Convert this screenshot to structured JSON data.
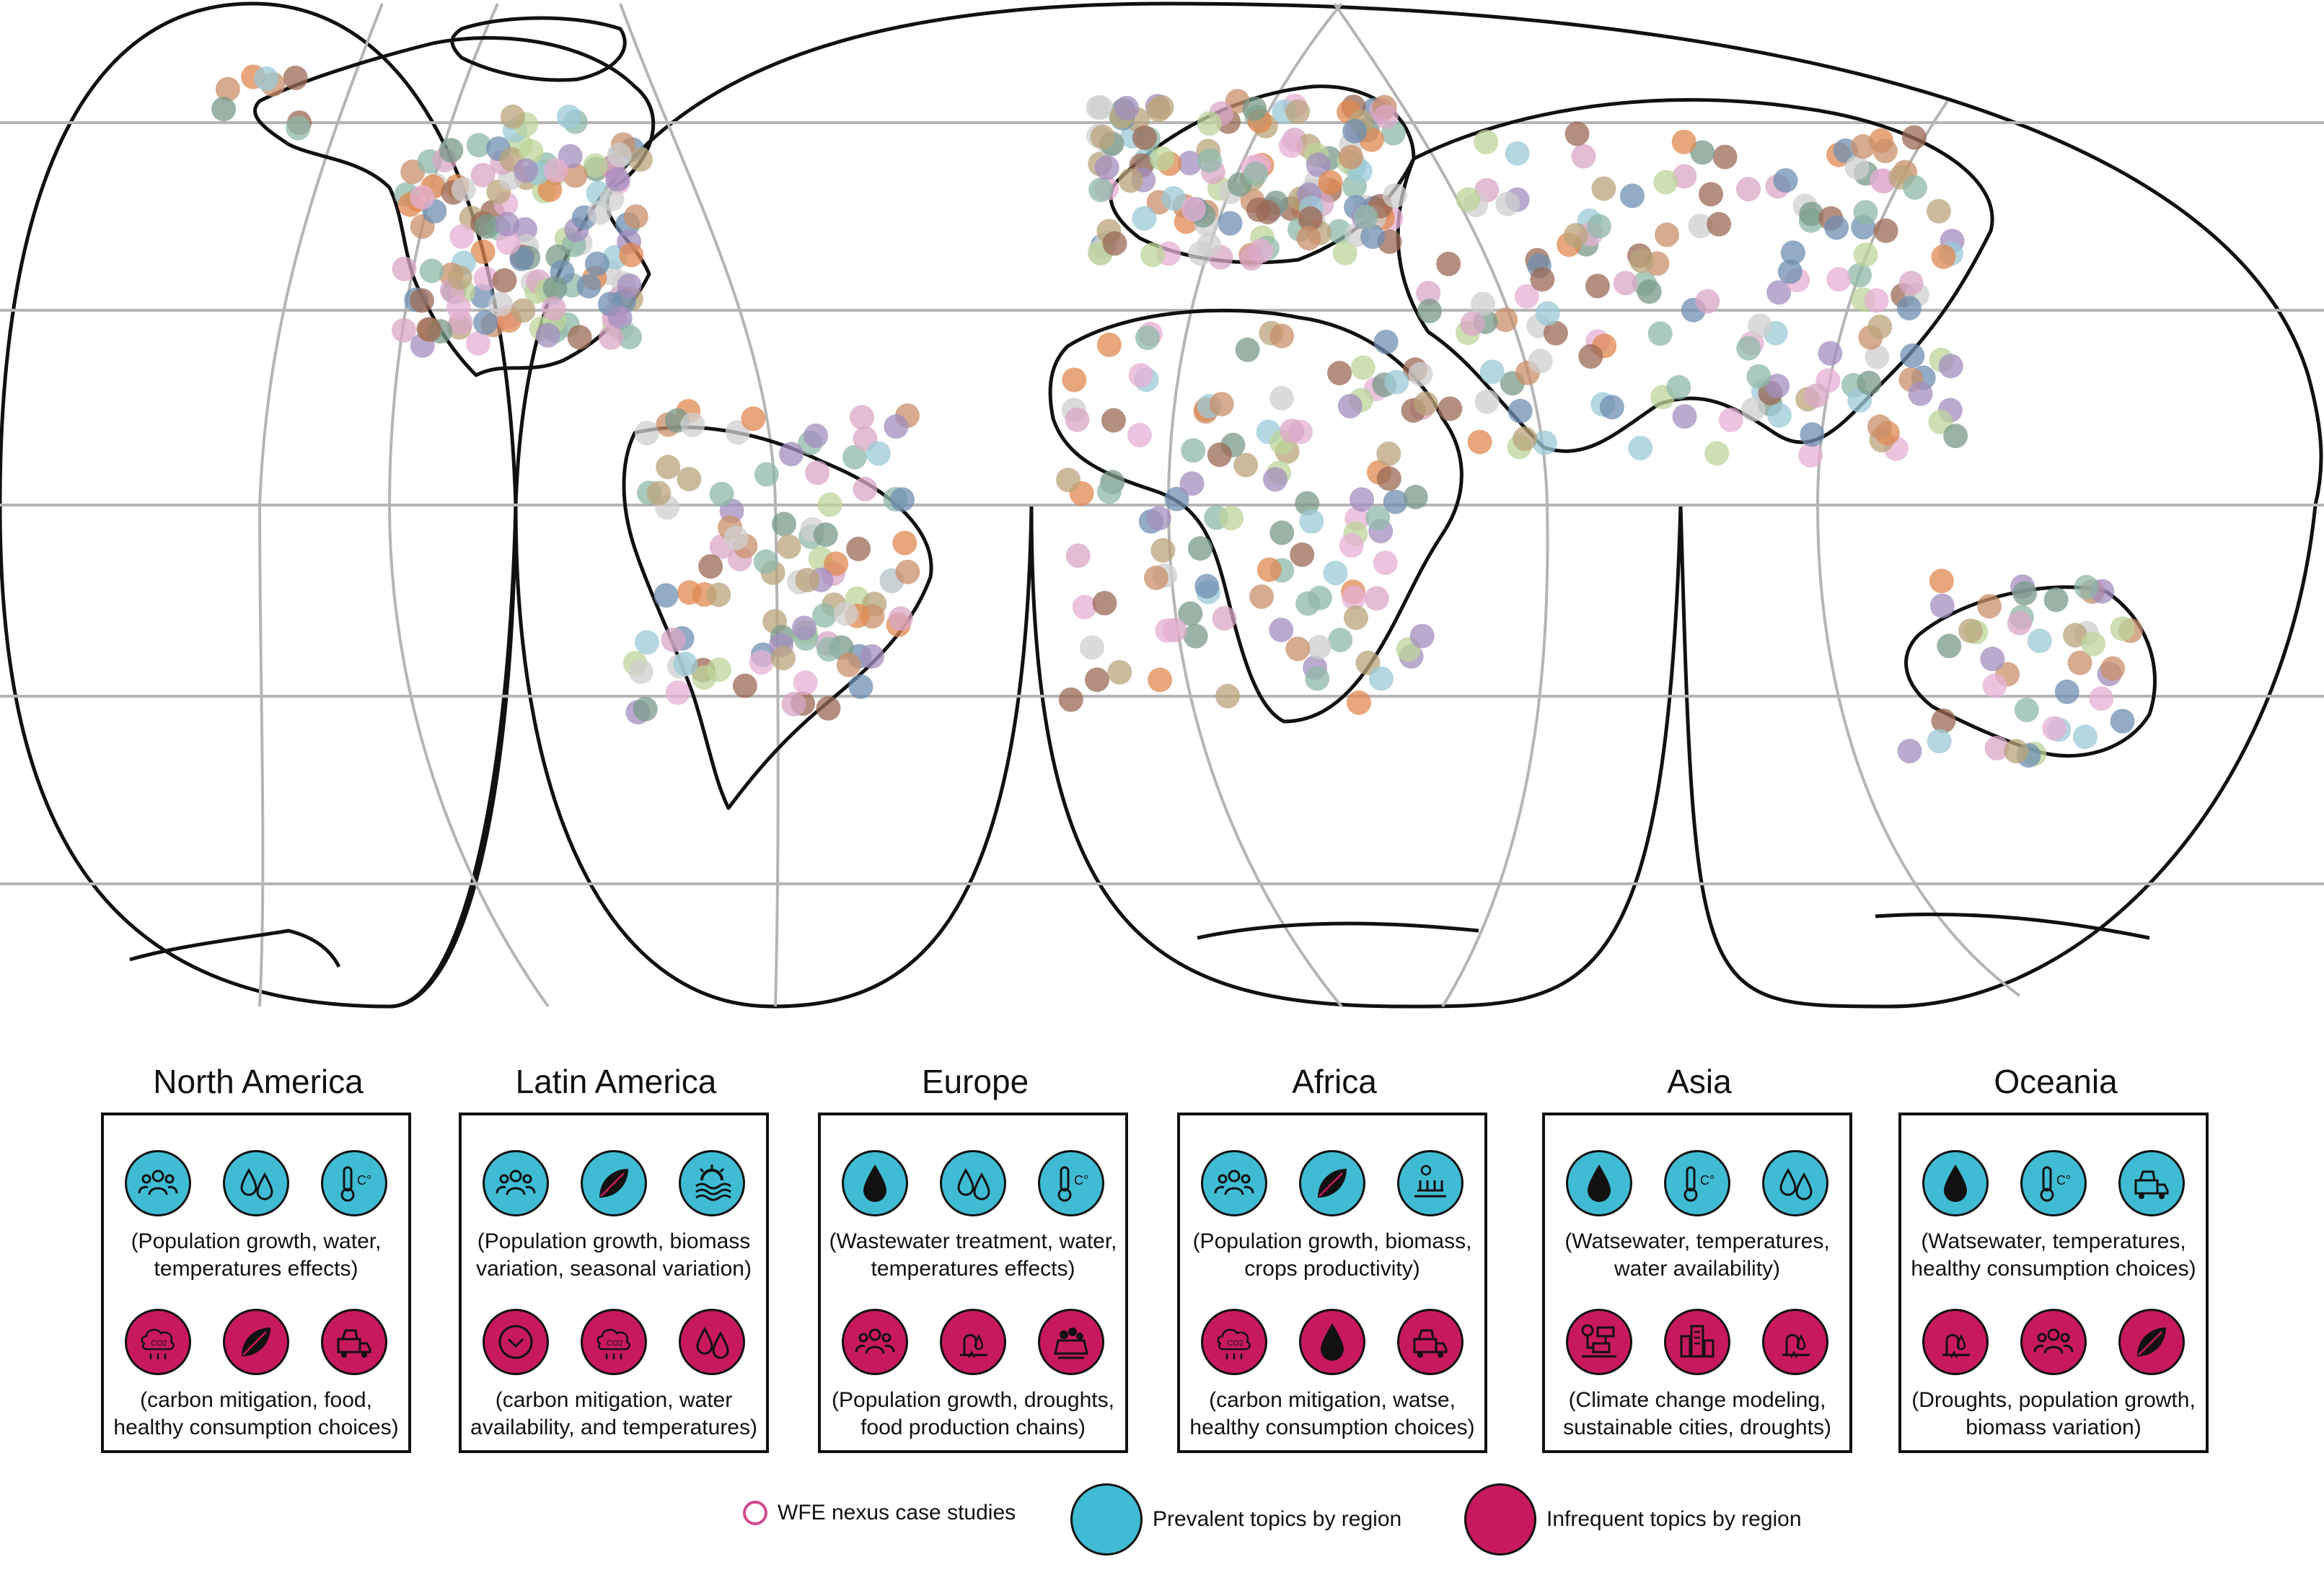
{
  "regions": [
    {
      "name": "North America",
      "top_icons": [
        "population-icon",
        "water-drops-icon",
        "temperature-icon"
      ],
      "top_caption": "(Population growth, water,\ntemperatures effects)",
      "bottom_icons": [
        "co2-icon",
        "leaf-icon",
        "food-truck-icon"
      ],
      "bottom_caption": "(carbon mitigation, food,\nhealthy consumption choices)"
    },
    {
      "name": "Latin America",
      "top_icons": [
        "population-icon",
        "leaf-icon",
        "seasonal-sun-icon"
      ],
      "top_caption": "(Population growth, biomass\nvariation, seasonal variation)",
      "bottom_icons": [
        "chevron-circle-icon",
        "co2-icon",
        "water-drops-icon"
      ],
      "bottom_caption": "(carbon mitigation, water\navailability, and temperatures)"
    },
    {
      "name": "Europe",
      "top_icons": [
        "wastewater-drop-icon",
        "water-drops-icon",
        "temperature-icon"
      ],
      "top_caption": "(Wastewater treatment, water,\ntemperatures effects)",
      "bottom_icons": [
        "population-icon",
        "drought-icon",
        "food-chain-icon"
      ],
      "bottom_caption": "(Population growth, droughts,\nfood production chains)"
    },
    {
      "name": "Africa",
      "top_icons": [
        "population-icon",
        "leaf-icon",
        "crops-icon"
      ],
      "top_caption": "(Population growth, biomass,\ncrops productivity)",
      "bottom_icons": [
        "co2-icon",
        "wastewater-drop-icon",
        "food-truck-icon"
      ],
      "bottom_caption": "(carbon mitigation, watse,\nhealthy consumption choices)"
    },
    {
      "name": "Asia",
      "top_icons": [
        "wastewater-drop-icon",
        "temperature-icon",
        "water-drops-icon"
      ],
      "top_caption": "(Watsewater, temperatures,\nwater availability)",
      "bottom_icons": [
        "climate-model-icon",
        "city-icon",
        "drought-icon"
      ],
      "bottom_caption": "(Climate change modeling,\nsustainable cities, droughts)"
    },
    {
      "name": "Oceania",
      "top_icons": [
        "wastewater-drop-icon",
        "temperature-icon",
        "food-truck-icon"
      ],
      "top_caption": "(Watsewater, temperatures,\nhealthy consumption choices)",
      "bottom_icons": [
        "drought-icon",
        "population-icon",
        "leaf-icon"
      ],
      "bottom_caption": "(Droughts, population growth,\nbiomass variation)"
    }
  ],
  "legend": {
    "case_studies": "WFE nexus case studies",
    "prevalent": "Prevalent topics by region",
    "infrequent": "Infrequent topics by region"
  },
  "colors": {
    "prevalent": "#3fbcd4",
    "infrequent": "#c8195f",
    "case_study_ring": "#d04a8e",
    "graticule": "#b5b5b5"
  }
}
